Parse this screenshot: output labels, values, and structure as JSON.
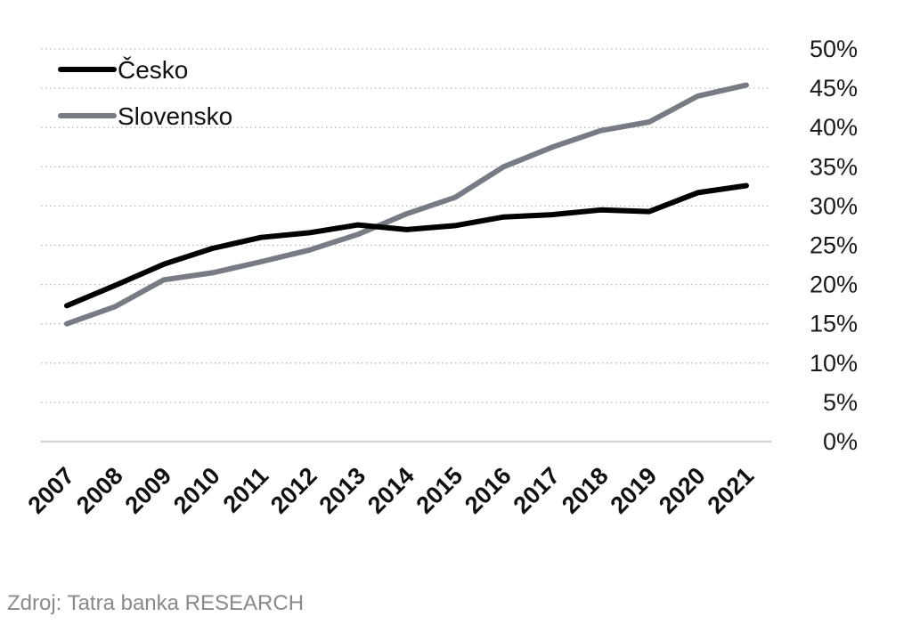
{
  "chart_data": {
    "type": "line",
    "categories": [
      "2007",
      "2008",
      "2009",
      "2010",
      "2011",
      "2012",
      "2013",
      "2014",
      "2015",
      "2016",
      "2017",
      "2018",
      "2019",
      "2020",
      "2021"
    ],
    "series": [
      {
        "name": "Česko",
        "color": "#000000",
        "values": [
          17.3,
          19.9,
          22.6,
          24.6,
          26.0,
          26.6,
          27.6,
          27.0,
          27.5,
          28.6,
          28.9,
          29.5,
          29.3,
          31.7,
          32.6
        ]
      },
      {
        "name": "Slovensko",
        "color": "#777b84",
        "values": [
          15.0,
          17.2,
          20.6,
          21.5,
          22.9,
          24.4,
          26.4,
          29.0,
          31.1,
          35.0,
          37.5,
          39.6,
          40.7,
          44.0,
          45.4
        ]
      }
    ],
    "ylim": [
      0,
      50
    ],
    "y_ticks": [
      "0%",
      "5%",
      "10%",
      "15%",
      "20%",
      "25%",
      "30%",
      "35%",
      "40%",
      "45%",
      "50%"
    ],
    "y_axis_side": "right",
    "grid": "horizontal dotted",
    "legend_position": "top-left",
    "xlabel": "",
    "ylabel": ""
  },
  "source": "Zdroj: Tatra banka RESEARCH"
}
